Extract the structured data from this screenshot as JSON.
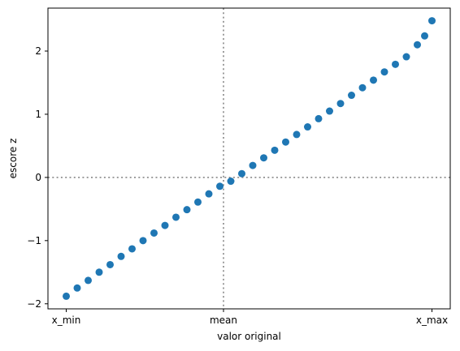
{
  "chart_data": {
    "type": "scatter",
    "title": "",
    "xlabel": "valor original",
    "ylabel": "escore z",
    "xlim": [
      -0.05,
      1.05
    ],
    "ylim": [
      -2.08,
      2.68
    ],
    "x_ticks": [
      {
        "value": 0.0,
        "label": "x_min"
      },
      {
        "value": 0.43,
        "label": "mean"
      },
      {
        "value": 1.0,
        "label": "x_max"
      }
    ],
    "y_ticks": [
      {
        "value": -2,
        "label": "−2"
      },
      {
        "value": -1,
        "label": "−1"
      },
      {
        "value": 0,
        "label": "0"
      },
      {
        "value": 1,
        "label": "1"
      },
      {
        "value": 2,
        "label": "2"
      }
    ],
    "reference_lines": {
      "vertical_x": 0.43,
      "horizontal_y": 0
    },
    "grid": false,
    "legend": "none",
    "marker_color": "#1f77b4",
    "series": [
      {
        "x": [
          0.0,
          0.03,
          0.06,
          0.09,
          0.12,
          0.15,
          0.18,
          0.21,
          0.24,
          0.27,
          0.3,
          0.33,
          0.36,
          0.39,
          0.42,
          0.45,
          0.48,
          0.51,
          0.54,
          0.57,
          0.6,
          0.63,
          0.66,
          0.69,
          0.72,
          0.75,
          0.78,
          0.81,
          0.84,
          0.87,
          0.9,
          0.93,
          0.96,
          0.98,
          1.0
        ],
        "y": [
          -1.88,
          -1.75,
          -1.63,
          -1.5,
          -1.38,
          -1.25,
          -1.13,
          -1.0,
          -0.88,
          -0.76,
          -0.63,
          -0.51,
          -0.39,
          -0.26,
          -0.14,
          -0.06,
          0.06,
          0.19,
          0.31,
          0.43,
          0.56,
          0.68,
          0.8,
          0.93,
          1.05,
          1.17,
          1.3,
          1.42,
          1.54,
          1.67,
          1.79,
          1.91,
          2.1,
          2.24,
          2.48
        ]
      }
    ]
  }
}
